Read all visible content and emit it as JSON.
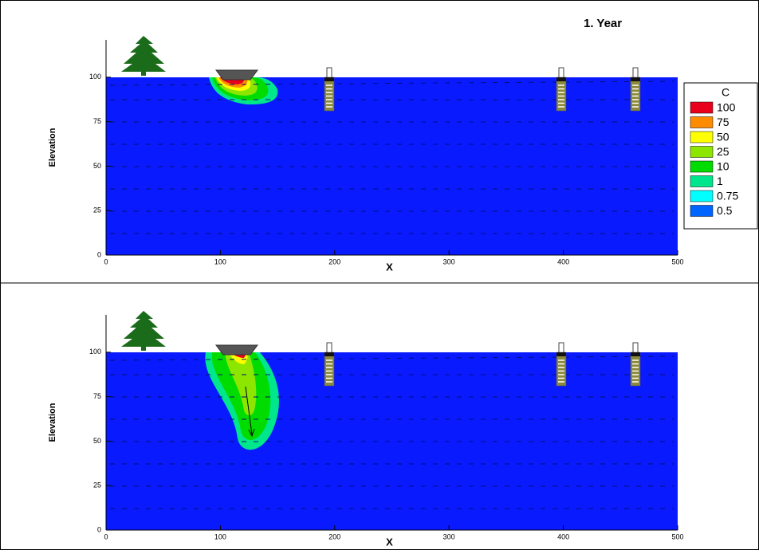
{
  "chart_data": [
    {
      "type": "contour",
      "title": "1.    Year",
      "xlabel": "X",
      "ylabel": "Elevation",
      "xlim": [
        0,
        500
      ],
      "xticks": [
        0,
        100,
        200,
        300,
        400,
        500
      ],
      "ylim": [
        0,
        121
      ],
      "yticks": [
        0,
        25,
        50,
        75,
        100
      ],
      "legend": {
        "title": "C",
        "levels": [
          100,
          75,
          50,
          25,
          10,
          1,
          0.75,
          0.5
        ],
        "colors": [
          "#e8001c",
          "#ff8c00",
          "#ffff00",
          "#8ce600",
          "#00dc00",
          "#00e68c",
          "#00ffff",
          "#0064ff"
        ]
      },
      "background_color": "#0a1aff"
    },
    {
      "type": "contour",
      "xlabel": "X",
      "ylabel": "Elevation",
      "xlim": [
        0,
        500
      ],
      "xticks": [
        0,
        100,
        200,
        300,
        400,
        500
      ],
      "ylim": [
        0,
        121
      ],
      "yticks": [
        0,
        25,
        50,
        75,
        100
      ],
      "background_color": "#0a1aff"
    }
  ]
}
